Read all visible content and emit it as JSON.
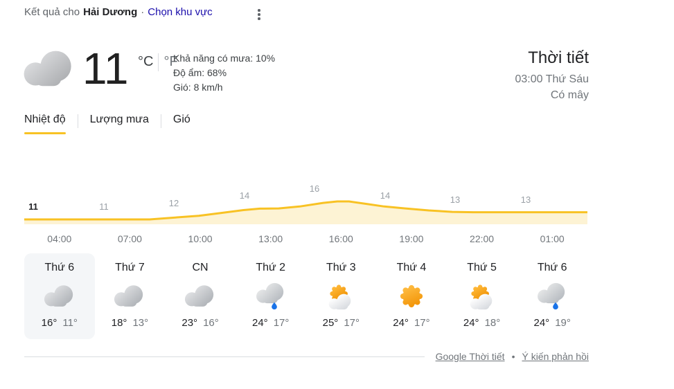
{
  "header": {
    "results_for": "Kết quả cho",
    "location": "Hải Dương",
    "separator": "·",
    "choose_area": "Chọn khu vực"
  },
  "current": {
    "icon": "cloudy",
    "temp": "11",
    "unit_c": "°C",
    "unit_f": "°F",
    "details": [
      "Khả năng có mưa: 10%",
      "Độ ẩm: 68%",
      "Gió: 8 km/h"
    ],
    "title": "Thời tiết",
    "time": "03:00 Thứ Sáu",
    "condition": "Có mây"
  },
  "tabs": [
    {
      "name": "temperature",
      "label": "Nhiệt độ",
      "active": true
    },
    {
      "name": "precipitation",
      "label": "Lượng mưa",
      "active": false
    },
    {
      "name": "wind",
      "label": "Gió",
      "active": false
    }
  ],
  "chart_data": {
    "type": "area",
    "series_name": "Nhiệt độ",
    "unit": "°C",
    "x": [
      "04:00",
      "07:00",
      "10:00",
      "13:00",
      "16:00",
      "19:00",
      "22:00",
      "01:00"
    ],
    "values": [
      11,
      11,
      12,
      14,
      16,
      14,
      13,
      13
    ],
    "current_index": 0,
    "ylim": [
      10,
      18
    ],
    "grid": false,
    "line_color": "#f8c224",
    "fill_color": "#fdf3d4",
    "render_points": [
      [
        2.5,
        11
      ],
      [
        7.9,
        11
      ],
      [
        8.8,
        11.45
      ],
      [
        10,
        12
      ],
      [
        10.9,
        12.75
      ],
      [
        11.9,
        13.6
      ],
      [
        12.6,
        14
      ],
      [
        13.4,
        14.05
      ],
      [
        14.3,
        14.6
      ],
      [
        15.3,
        15.6
      ],
      [
        15.9,
        16
      ],
      [
        16.4,
        16
      ],
      [
        17.1,
        15.35
      ],
      [
        17.9,
        14.6
      ],
      [
        18.8,
        14.05
      ],
      [
        19.8,
        13.5
      ],
      [
        20.8,
        13.1
      ],
      [
        21.7,
        13
      ],
      [
        26.6,
        13
      ]
    ]
  },
  "forecast": {
    "days": [
      {
        "name": "Thứ 6",
        "icon": "cloudy",
        "high": "16°",
        "low": "11°",
        "selected": true
      },
      {
        "name": "Thứ 7",
        "icon": "cloudy",
        "high": "18°",
        "low": "13°",
        "selected": false
      },
      {
        "name": "CN",
        "icon": "cloudy",
        "high": "23°",
        "low": "16°",
        "selected": false
      },
      {
        "name": "Thứ 2",
        "icon": "rain",
        "high": "24°",
        "low": "17°",
        "selected": false
      },
      {
        "name": "Thứ 3",
        "icon": "partly",
        "high": "25°",
        "low": "17°",
        "selected": false
      },
      {
        "name": "Thứ 4",
        "icon": "sunny",
        "high": "24°",
        "low": "17°",
        "selected": false
      },
      {
        "name": "Thứ 5",
        "icon": "partly",
        "high": "24°",
        "low": "18°",
        "selected": false
      },
      {
        "name": "Thứ 6",
        "icon": "rain",
        "high": "24°",
        "low": "19°",
        "selected": false
      }
    ]
  },
  "footer": {
    "links": [
      {
        "name": "google-weather-link",
        "label": "Google Thời tiết"
      },
      {
        "name": "feedback-link",
        "label": "Ý kiến phản hồi"
      }
    ],
    "separator": "•"
  },
  "colors": {
    "accent_yellow": "#f8c224",
    "link_blue": "#1a0dab",
    "rain_blue": "#1a73e8",
    "text_dark": "#202124",
    "text_gray": "#70757a",
    "label_gray": "#9aa0a6"
  }
}
